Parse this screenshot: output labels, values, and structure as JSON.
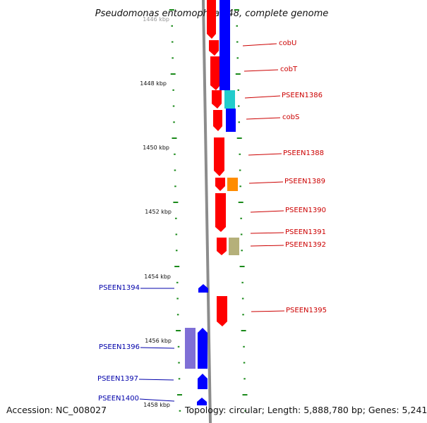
{
  "title": "Pseudomonas entomophila L48, complete genome",
  "accession_text": "Accession: NC_008027",
  "summary_text": "Topology: circular; Length: 5,888,780 bp; Genes: 5,241",
  "colors": {
    "backbone": "#8c8c8c",
    "tick": "#1a8a1a",
    "scale_label": "#111111",
    "right_label": "#cc0000",
    "left_label": "#0000aa",
    "red": "#ff0000",
    "blue": "#0000ff",
    "cyan": "#22cccc",
    "orange": "#ff8c00",
    "khaki": "#b5b07a",
    "lavender": "#7f6fd6"
  },
  "scale_labels": [
    "1446 kbp",
    "1448 kbp",
    "1450 kbp",
    "1452 kbp",
    "1454 kbp",
    "1456 kbp",
    "1458 kbp"
  ],
  "genes_right": [
    {
      "label": "cobU"
    },
    {
      "label": "cobT"
    },
    {
      "label": "PSEEN1386"
    },
    {
      "label": "cobS"
    },
    {
      "label": "PSEEN1388"
    },
    {
      "label": "PSEEN1389"
    },
    {
      "label": "PSEEN1390"
    },
    {
      "label": "PSEEN1391"
    },
    {
      "label": "PSEEN1392"
    },
    {
      "label": "PSEEN1395"
    }
  ],
  "genes_left": [
    {
      "label": "PSEEN1394"
    },
    {
      "label": "PSEEN1396"
    },
    {
      "label": "PSEEN1397"
    },
    {
      "label": "PSEEN1400"
    }
  ]
}
